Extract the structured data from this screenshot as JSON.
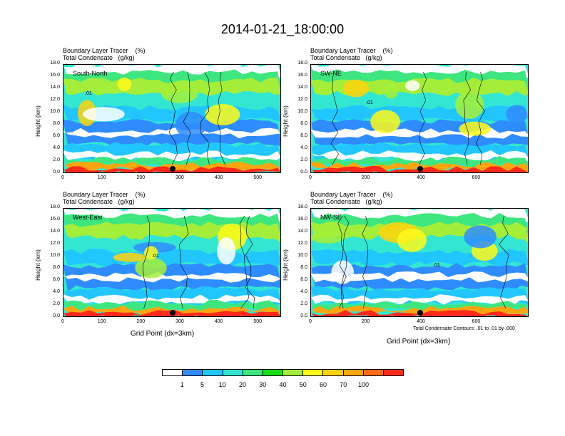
{
  "title": "2014-01-21_18:00:00",
  "header_line1": "Boundary Layer Tracer    (%)",
  "header_line2": "Total Condensate   (g/kg)",
  "ylabel": "Height (km)",
  "xlabel": "Grid Point (dx=3km)",
  "contour_note": "Total Condensate Contours: .01 to .01 by .000",
  "colors": [
    "#ffffff",
    "#2f8cff",
    "#22c6ff",
    "#33e6d1",
    "#3ee680",
    "#19e012",
    "#a4ee3a",
    "#fff91a",
    "#ffd20e",
    "#ffa510",
    "#ff6b1a",
    "#ff2a1a"
  ],
  "colorbar_labels": [
    "1",
    "5",
    "10",
    "20",
    "30",
    "40",
    "50",
    "60",
    "70",
    "100"
  ],
  "chart_data": [
    {
      "type": "heatmap",
      "panel": "South-North",
      "ylim": [
        0,
        18
      ],
      "yticks": [
        "0.0",
        "2.0",
        "4.0",
        "6.0",
        "8.0",
        "10.0",
        "12.0",
        "14.0",
        "16.0",
        "18.0"
      ],
      "xlim": [
        0,
        560
      ],
      "xticks": [
        "0",
        "100",
        "200",
        "300",
        "400",
        "500"
      ],
      "contour_label": ".01",
      "marker_x": 280
    },
    {
      "type": "heatmap",
      "panel": "SW-NE",
      "ylim": [
        0,
        18
      ],
      "yticks": [
        "0.0",
        "2.0",
        "4.0",
        "6.0",
        "8.0",
        "10.0",
        "12.0",
        "14.0",
        "16.0",
        "18.0"
      ],
      "xlim": [
        0,
        790
      ],
      "xticks": [
        "0",
        "200",
        "400",
        "600"
      ],
      "contour_label": ".01",
      "marker_x": 395
    },
    {
      "type": "heatmap",
      "panel": "West-East",
      "ylim": [
        0,
        18
      ],
      "yticks": [
        "0.0",
        "2.0",
        "4.0",
        "6.0",
        "8.0",
        "10.0",
        "12.0",
        "14.0",
        "16.0",
        "18.0"
      ],
      "xlim": [
        0,
        560
      ],
      "xticks": [
        "0",
        "100",
        "200",
        "300",
        "400",
        "500"
      ],
      "contour_label": ".01",
      "marker_x": 280
    },
    {
      "type": "heatmap",
      "panel": "NW-SE",
      "ylim": [
        0,
        18
      ],
      "yticks": [
        "0.0",
        "2.0",
        "4.0",
        "6.0",
        "8.0",
        "10.0",
        "12.0",
        "14.0",
        "16.0",
        "18.0"
      ],
      "xlim": [
        0,
        790
      ],
      "xticks": [
        "0",
        "200",
        "400",
        "600"
      ],
      "contour_label": ".01",
      "marker_x": 395
    }
  ]
}
